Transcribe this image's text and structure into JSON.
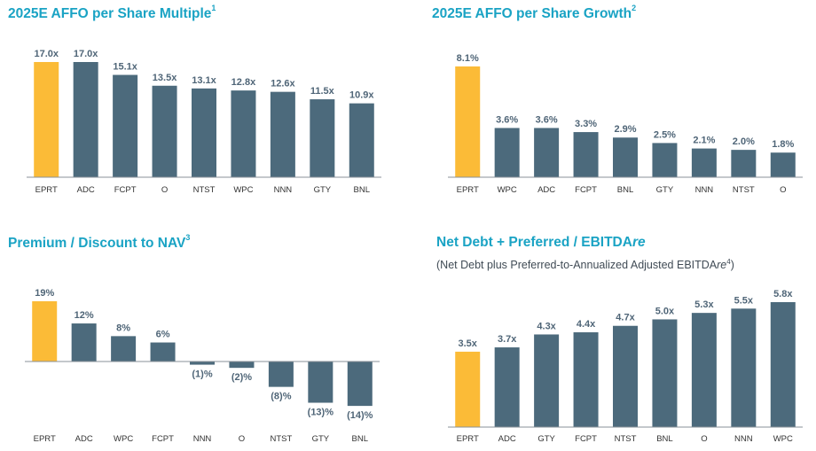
{
  "colors": {
    "highlight": "#fbbb37",
    "bar": "#4c6a7c",
    "axis": "#8a9299",
    "title": "#1aa3c4"
  },
  "panels": [
    {
      "title": "2025E AFFO per Share Multiple",
      "footnote": "1"
    },
    {
      "title": "2025E AFFO per Share Growth",
      "footnote": "2"
    },
    {
      "title": "Premium / Discount to NAV",
      "footnote": "3"
    },
    {
      "title_main": "Net Debt + Preferred / EBITDA",
      "title_italic": "re",
      "subtitle_pre": "(Net Debt plus Preferred-to-Annualized Adjusted EBITDA",
      "subtitle_italic": "re",
      "subtitle_sup": "4",
      "subtitle_post": ")"
    }
  ],
  "chart_data": [
    {
      "type": "bar",
      "title": "2025E AFFO per Share Multiple",
      "categories": [
        "EPRT",
        "ADC",
        "FCPT",
        "O",
        "NTST",
        "WPC",
        "NNN",
        "GTY",
        "BNL"
      ],
      "values": [
        17.0,
        17.0,
        15.1,
        13.5,
        13.1,
        12.8,
        12.6,
        11.5,
        10.9
      ],
      "labels": [
        "17.0x",
        "17.0x",
        "15.1x",
        "13.5x",
        "13.1x",
        "12.8x",
        "12.6x",
        "11.5x",
        "10.9x"
      ],
      "highlight": "EPRT",
      "ylim": [
        0,
        17.0
      ]
    },
    {
      "type": "bar",
      "title": "2025E AFFO per Share Growth",
      "categories": [
        "EPRT",
        "WPC",
        "ADC",
        "FCPT",
        "BNL",
        "GTY",
        "NNN",
        "NTST",
        "O"
      ],
      "values": [
        8.1,
        3.6,
        3.6,
        3.3,
        2.9,
        2.5,
        2.1,
        2.0,
        1.8
      ],
      "labels": [
        "8.1%",
        "3.6%",
        "3.6%",
        "3.3%",
        "2.9%",
        "2.5%",
        "2.1%",
        "2.0%",
        "1.8%"
      ],
      "highlight": "EPRT",
      "ylim": [
        0,
        8.1
      ]
    },
    {
      "type": "bar",
      "title": "Premium / Discount to NAV",
      "categories": [
        "EPRT",
        "ADC",
        "WPC",
        "FCPT",
        "NNN",
        "O",
        "NTST",
        "GTY",
        "BNL"
      ],
      "values": [
        19,
        12,
        8,
        6,
        -1,
        -2,
        -8,
        -13,
        -14
      ],
      "labels": [
        "19%",
        "12%",
        "8%",
        "6%",
        "(1)%",
        "(2)%",
        "(8)%",
        "(13)%",
        "(14)%"
      ],
      "highlight": "EPRT",
      "ylim": [
        -14,
        19
      ]
    },
    {
      "type": "bar",
      "title": "Net Debt + Preferred / EBITDAre",
      "categories": [
        "EPRT",
        "ADC",
        "GTY",
        "FCPT",
        "NTST",
        "BNL",
        "O",
        "NNN",
        "WPC"
      ],
      "values": [
        3.5,
        3.7,
        4.3,
        4.4,
        4.7,
        5.0,
        5.3,
        5.5,
        5.8
      ],
      "labels": [
        "3.5x",
        "3.7x",
        "4.3x",
        "4.4x",
        "4.7x",
        "5.0x",
        "5.3x",
        "5.5x",
        "5.8x"
      ],
      "highlight": "EPRT",
      "ylim": [
        0,
        5.8
      ]
    }
  ]
}
